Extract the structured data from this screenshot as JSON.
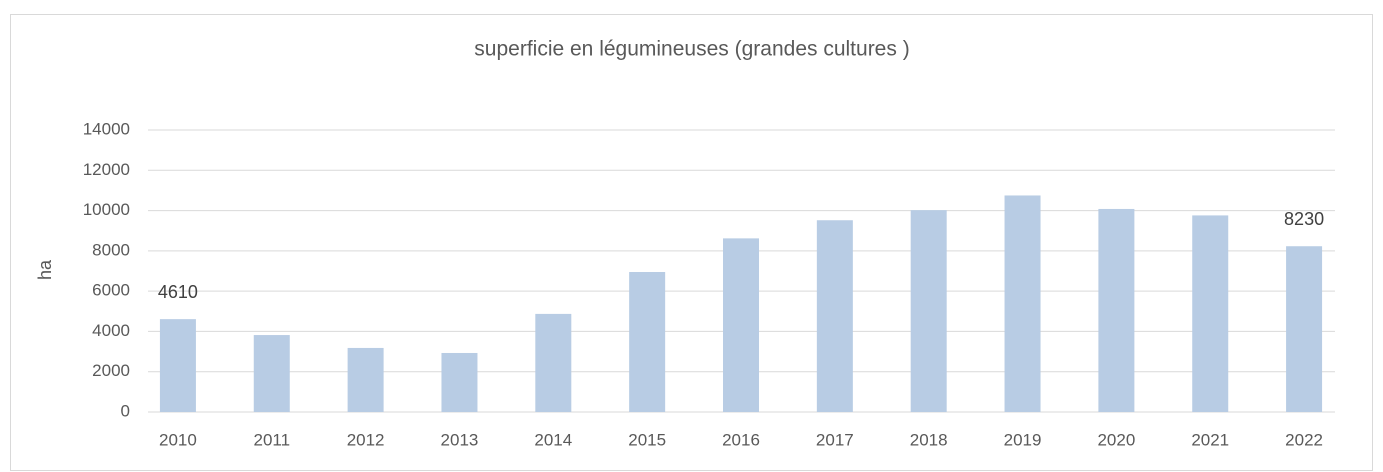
{
  "chart_data": {
    "type": "bar",
    "title": "superficie en légumineuses (grandes cultures )",
    "y_label": "ha",
    "categories": [
      "2010",
      "2011",
      "2012",
      "2013",
      "2014",
      "2015",
      "2016",
      "2017",
      "2018",
      "2019",
      "2020",
      "2021",
      "2022"
    ],
    "values": [
      4610,
      3820,
      3180,
      2930,
      4870,
      6950,
      8620,
      9520,
      10020,
      10750,
      10080,
      9760,
      8230
    ],
    "value_labels": [
      "4610",
      null,
      null,
      null,
      null,
      null,
      null,
      null,
      null,
      null,
      null,
      null,
      "8230"
    ],
    "color": "#b8cce4",
    "ylim": [
      0,
      14000
    ],
    "yticks": [
      0,
      2000,
      4000,
      6000,
      8000,
      10000,
      12000,
      14000
    ],
    "grid": true
  }
}
